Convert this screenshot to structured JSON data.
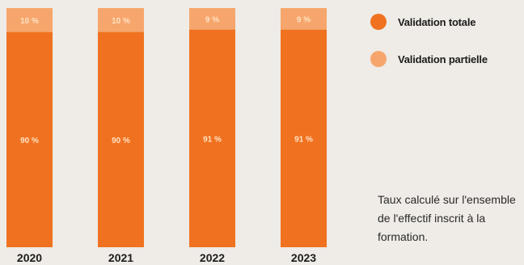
{
  "chart_data": {
    "type": "bar",
    "stacked": true,
    "percent": true,
    "categories": [
      "2020",
      "2021",
      "2022",
      "2023"
    ],
    "series": [
      {
        "name": "Validation totale",
        "values": [
          90,
          90,
          91,
          91
        ],
        "labels": [
          "90 %",
          "90 %",
          "91 %",
          "91 %"
        ],
        "color": "#f07220"
      },
      {
        "name": "Validation partielle",
        "values": [
          10,
          10,
          9,
          9
        ],
        "labels": [
          "10 %",
          "10 %",
          "9 %",
          "9 %"
        ],
        "color": "#f6a66c"
      }
    ],
    "ylim": [
      0,
      100
    ],
    "legend": "top-right",
    "grid": false
  },
  "legend": {
    "items": [
      {
        "label": "Validation totale",
        "color": "#f07220"
      },
      {
        "label": "Validation partielle",
        "color": "#f6a66c"
      }
    ]
  },
  "footnote": {
    "lines": [
      "Taux calculé sur l'ensemble",
      "de l'effectif inscrit à la",
      "formation."
    ]
  },
  "colors": {
    "background": "#efebe6",
    "bar_label": "#ffe2c4",
    "year_label": "#1c1c1c"
  }
}
